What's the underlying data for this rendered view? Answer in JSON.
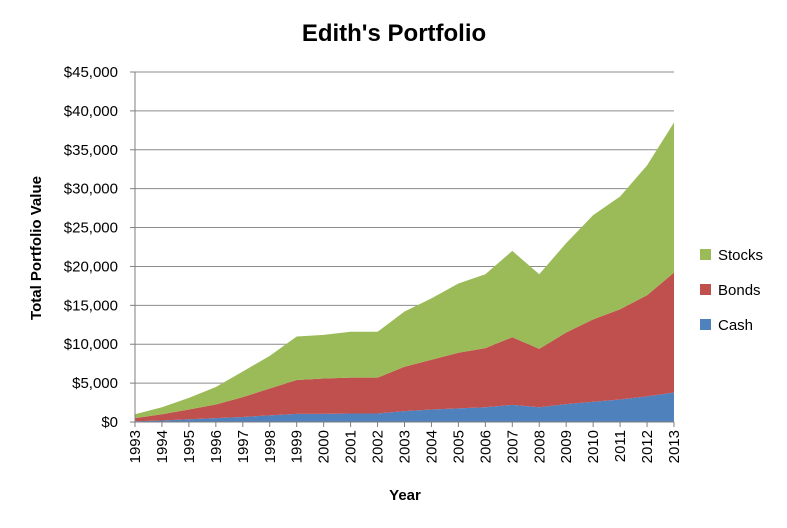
{
  "chart_data": {
    "type": "area",
    "stacked": true,
    "title": "Edith's Portfolio",
    "xlabel": "Year",
    "ylabel": "Total Portfolio Value",
    "x": [
      "1993",
      "1994",
      "1995",
      "1996",
      "1997",
      "1998",
      "1999",
      "2000",
      "2001",
      "2002",
      "2003",
      "2004",
      "2005",
      "2006",
      "2007",
      "2008",
      "2009",
      "2010",
      "2011",
      "2012",
      "2013"
    ],
    "yticks": [
      "$0",
      "$5,000",
      "$10,000",
      "$15,000",
      "$20,000",
      "$25,000",
      "$30,000",
      "$35,000",
      "$40,000",
      "$45,000"
    ],
    "ylim": [
      0,
      45000
    ],
    "grid": true,
    "legend_position": "right",
    "series": [
      {
        "name": "Cash",
        "color": "#4f81bd",
        "values": [
          100,
          200,
          350,
          500,
          650,
          850,
          1050,
          1050,
          1100,
          1100,
          1400,
          1600,
          1750,
          1900,
          2200,
          1900,
          2300,
          2600,
          2900,
          3300,
          3800
        ]
      },
      {
        "name": "Bonds",
        "color": "#c0504d",
        "values": [
          400,
          800,
          1250,
          1750,
          2550,
          3450,
          4350,
          4550,
          4600,
          4600,
          5700,
          6400,
          7150,
          7600,
          8700,
          7500,
          9200,
          10600,
          11600,
          13000,
          15400
        ]
      },
      {
        "name": "Stocks",
        "color": "#9bbb59",
        "values": [
          500,
          900,
          1500,
          2250,
          3300,
          4200,
          5600,
          5600,
          5900,
          5900,
          7100,
          7900,
          8900,
          9500,
          11100,
          9600,
          11500,
          13400,
          14500,
          16700,
          19300
        ]
      }
    ]
  }
}
